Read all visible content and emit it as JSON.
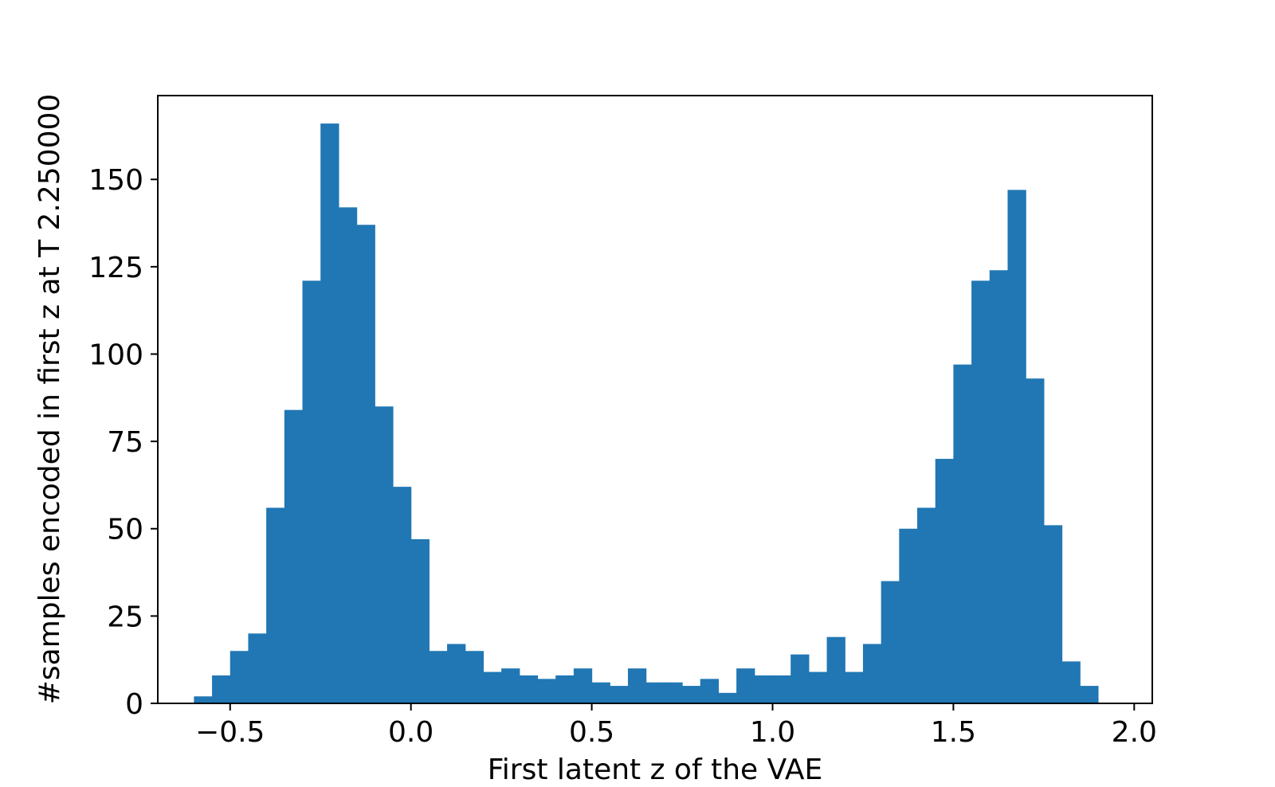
{
  "chart_data": {
    "type": "bar",
    "title": "",
    "xlabel": "First latent z of the VAE",
    "ylabel": "#samples encoded in first z at T 2.250000",
    "bar_color": "#2077b4",
    "xlim": [
      -0.7,
      2.05
    ],
    "ylim": [
      0,
      174
    ],
    "grid": false,
    "x_ticks": [
      {
        "value": -0.5,
        "label": "−0.5"
      },
      {
        "value": 0.0,
        "label": "0.0"
      },
      {
        "value": 0.5,
        "label": "0.5"
      },
      {
        "value": 1.0,
        "label": "1.0"
      },
      {
        "value": 1.5,
        "label": "1.5"
      },
      {
        "value": 2.0,
        "label": "2.0"
      }
    ],
    "y_ticks": [
      {
        "value": 0,
        "label": "0"
      },
      {
        "value": 25,
        "label": "25"
      },
      {
        "value": 50,
        "label": "50"
      },
      {
        "value": 75,
        "label": "75"
      },
      {
        "value": 100,
        "label": "100"
      },
      {
        "value": 125,
        "label": "125"
      },
      {
        "value": 150,
        "label": "150"
      }
    ],
    "bins": {
      "start": -0.6,
      "width": 0.05,
      "counts": [
        2,
        8,
        15,
        20,
        56,
        84,
        121,
        166,
        142,
        137,
        85,
        62,
        47,
        15,
        17,
        15,
        9,
        10,
        8,
        7,
        8,
        10,
        6,
        5,
        10,
        6,
        6,
        5,
        7,
        3,
        10,
        8,
        8,
        14,
        9,
        19,
        9,
        17,
        35,
        50,
        56,
        70,
        97,
        121,
        124,
        147,
        93,
        51,
        12,
        5
      ]
    }
  }
}
